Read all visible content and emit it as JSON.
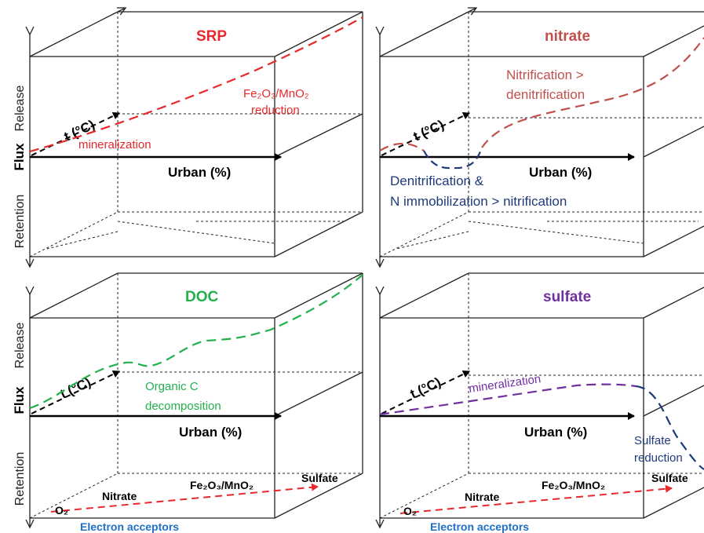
{
  "axes": {
    "x_label": "Urban (%)",
    "t_label": "t (°C)",
    "y_label": "Flux",
    "release_label": "Release",
    "retention_label": "Retention"
  },
  "colors": {
    "srp": "#e8282b",
    "nitrate_release": "#c0504d",
    "nitrate_retention": "#1f3a7a",
    "doc": "#22b04b",
    "sulfate_release": "#7030a0",
    "sulfate_retention": "#1f3a7a",
    "acceptor_arrow": "#e8282b",
    "electron_acceptors": "#1f6fc5"
  },
  "panels": {
    "srp": {
      "title": "SRP",
      "note1": "Fe₂O₃/MnO₂",
      "note2": "reduction",
      "note3": "mineralization"
    },
    "nitrate": {
      "title": "nitrate",
      "note1": "Nitrification >",
      "note2": "denitrification",
      "note3": "Denitrification &",
      "note4": "N immobilization > nitrification"
    },
    "doc": {
      "title": "DOC",
      "note1": "Organic C",
      "note2": "decomposition"
    },
    "sulfate": {
      "title": "sulfate",
      "note1": "mineralization",
      "note2": "Sulfate",
      "note3": "reduction"
    }
  },
  "electron_acceptors": {
    "label": "Electron acceptors",
    "items": [
      "O₂",
      "Nitrate",
      "Fe₂O₃/MnO₂",
      "Sulfate"
    ]
  }
}
